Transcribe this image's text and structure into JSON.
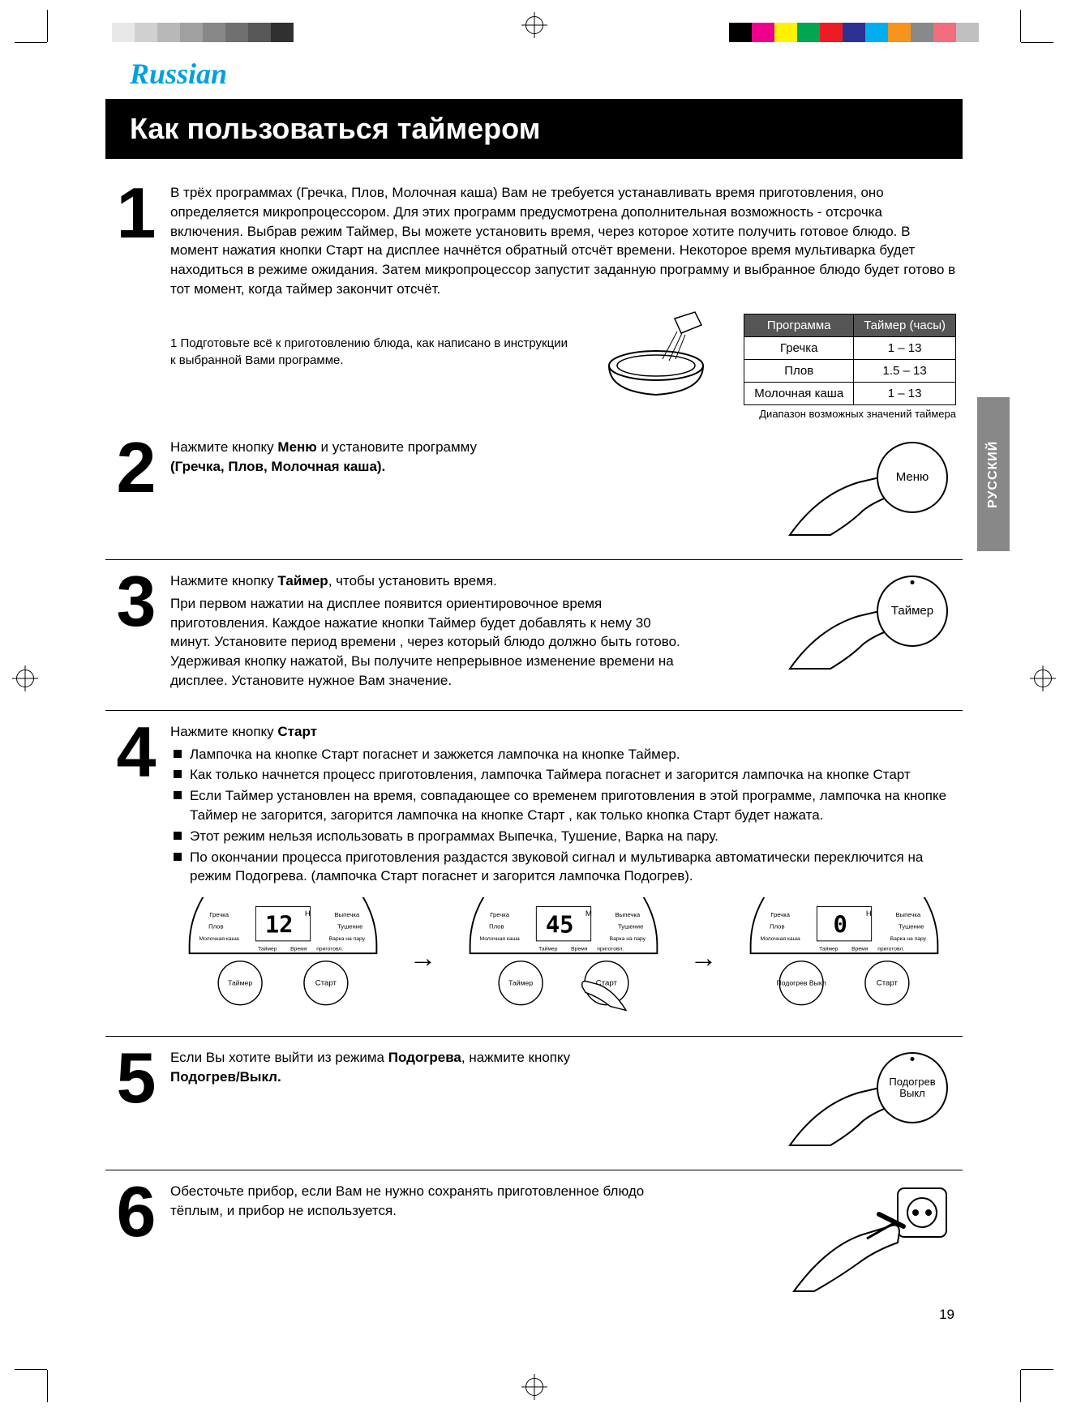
{
  "print_marks": {
    "grays_left": [
      "#ffffff",
      "#e8e8e8",
      "#d0d0d0",
      "#b8b8b8",
      "#a0a0a0",
      "#888888",
      "#707070",
      "#585858",
      "#303030"
    ],
    "colors_right": [
      "#000000",
      "#ec008c",
      "#fff200",
      "#00a651",
      "#ed1c24",
      "#2e3192",
      "#00aeef",
      "#f7941d",
      "#898989",
      "#f26d7d",
      "#c0c0c0"
    ]
  },
  "language_label": "Russian",
  "language_label_color": "#00a0e0",
  "title": "Как пользоваться таймером",
  "side_tab": "РУССКИЙ",
  "side_tab_bg": "#888888",
  "page_number": "19",
  "timer_table": {
    "header": [
      "Программа",
      "Таймер (часы)"
    ],
    "rows": [
      [
        "Гречка",
        "1 – 13"
      ],
      [
        "Плов",
        "1.5 – 13"
      ],
      [
        "Молочная каша",
        "1 – 13"
      ]
    ],
    "caption": "Диапазон возможных значений таймера"
  },
  "steps": {
    "s1": {
      "num": "1",
      "para": "В трёх программах (Гречка, Плов, Молочная каша) Вам не требуется устанавливать время приготовления, оно определяется микропроцессором. Для этих программ предусмотрена дополнительная возможность - отсрочка включения. Выбрав режим Таймер, Вы можете установить время, через которое хотите получить готовое блюдо. В момент нажатия кнопки Старт на дисплее начнётся обратный отсчёт времени. Некоторое время мультиварка будет находиться в режиме ожидания. Затем микропроцессор запустит заданную программу и выбранное блюдо будет готово в тот момент, когда таймер закончит отсчёт.",
      "sub": "1  Подготовьте всё к приготовлению блюда, как написано в инструкции к выбранной Вами программе."
    },
    "s2": {
      "num": "2",
      "text_a": "Нажмите кнопку ",
      "text_b": "Меню",
      "text_c": " и установите программу ",
      "text_d": "(Гречка, Плов, Молочная каша).",
      "button_label": "Меню"
    },
    "s3": {
      "num": "3",
      "line1_a": "Нажмите кнопку ",
      "line1_b": "Таймер",
      "line1_c": ", чтобы установить время.",
      "para": "При первом нажатии на дисплее появится ориентировочное время приготовления. Каждое нажатие кнопки Таймер будет добавлять к нему 30 минут. Установите период времени , через который блюдо должно быть готово. Удерживая кнопку нажатой, Вы получите непрерывное изменение времени на дисплее. Установите нужное Вам значение.",
      "button_label": "Таймер"
    },
    "s4": {
      "num": "4",
      "head_a": "Нажмите кнопку ",
      "head_b": "Старт",
      "bullets": [
        "Лампочка на кнопке Старт погаснет и зажжется лампочка на кнопке Таймер.",
        "Как только начнется процесс приготовления, лампочка Таймера погаснет и загорится лампочка на кнопке Старт",
        "Если Таймер установлен на время, совпадающее со временем приготовления в этой программе, лампочка на кнопке Таймер не загорится, загорится лампочка на кнопке Старт , как только кнопка Старт будет нажата.",
        "Этот режим нельзя использовать в программах Выпечка, Тушение, Варка на пару.",
        "По окончании процесса приготовления раздастся звуковой сигнал и мультиварка автоматически переключится на режим Подогрева. (лампочка Старт погаснет и загорится лампочка Подогрев)."
      ],
      "panels": {
        "programs_left": [
          "Гречка",
          "Плов",
          "Молочная каша"
        ],
        "programs_right": [
          "Выпечка",
          "Тушение",
          "Варка на пару"
        ],
        "bottom_labels": [
          "Таймер",
          "Время",
          "приготовл."
        ],
        "p1_display": "12",
        "p1_unit": "H",
        "p2_display": "45",
        "p2_unit": "M",
        "p3_display": "0",
        "p3_unit": "H",
        "btn_timer": "Таймер",
        "btn_start": "Старт",
        "btn_warm": "Подогрев\nВыкл"
      }
    },
    "s5": {
      "num": "5",
      "text_a": "Если Вы хотите выйти из режима ",
      "text_b": "Подогрева",
      "text_c": ", нажмите кнопку ",
      "text_d": "Подогрев/Выкл.",
      "button_label": "Подогрев\nВыкл"
    },
    "s6": {
      "num": "6",
      "text": "Обесточьте прибор, если Вам не нужно сохранять приготовленное блюдо тёплым, и прибор не используется."
    }
  }
}
